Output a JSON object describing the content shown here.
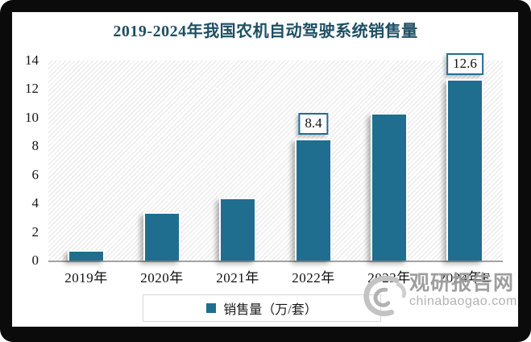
{
  "title": "2019-2024年我国农机自动驾驶系统销售量",
  "chart_data": {
    "type": "bar",
    "title": "2019-2024年我国农机自动驾驶系统销售量",
    "categories": [
      "2019年",
      "2020年",
      "2021年",
      "2022年",
      "2023年",
      "2024年E"
    ],
    "values": [
      0.6,
      3.3,
      4.3,
      8.4,
      10.2,
      12.6
    ],
    "data_labels": [
      "",
      "",
      "",
      "8.4",
      "",
      "12.6"
    ],
    "xlabel": "",
    "ylabel": "",
    "ylim": [
      0,
      14
    ],
    "yticks": [
      0,
      2,
      4,
      6,
      8,
      10,
      12,
      14
    ],
    "grid": false,
    "legend_position": "bottom",
    "legend_entries": [
      "销售量（万/套）"
    ],
    "bar_color": "#1f6e90",
    "plot_background": "diagonal-hatch"
  },
  "legend": {
    "label": "销售量（万/套）"
  },
  "watermark": {
    "site_name": "观研报告网",
    "site_url": "chinabaogao.com"
  },
  "colors": {
    "bar": "#1f6e90",
    "title_text": "#1d4f63",
    "axis_line": "#a3a3a3",
    "frame": "#0b0b0b",
    "watermark_gray": "#9e9e9e"
  }
}
